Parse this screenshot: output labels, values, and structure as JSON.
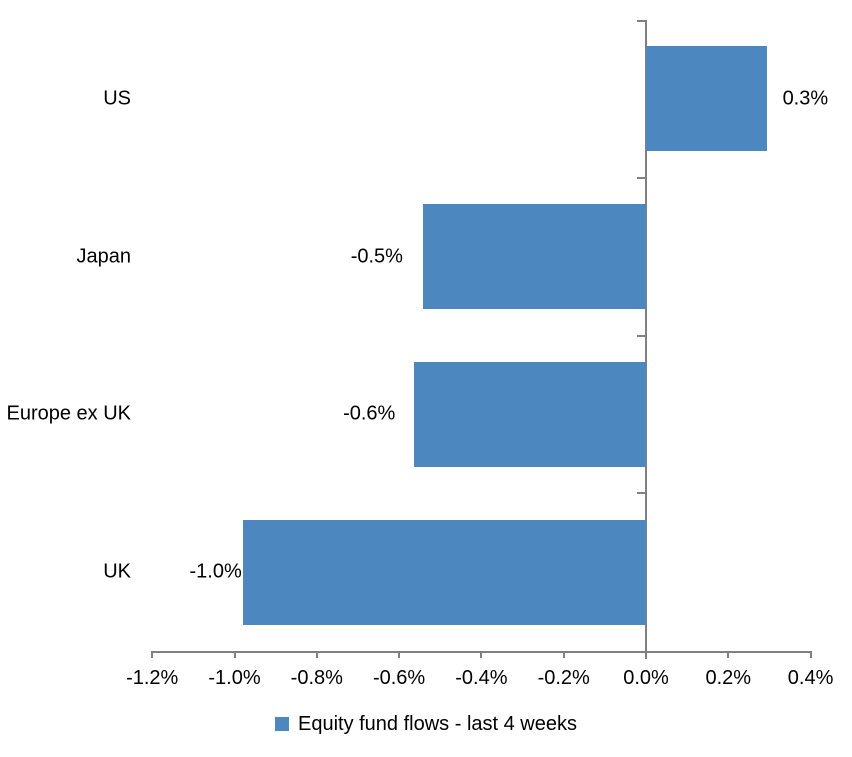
{
  "chart_data": {
    "type": "bar",
    "orientation": "horizontal",
    "title": "",
    "categories": [
      "US",
      "Japan",
      "Europe ex UK",
      "UK"
    ],
    "values": [
      0.3,
      -0.5,
      -0.6,
      -1.0
    ],
    "unit": "%",
    "data_labels": [
      "0.3%",
      "-0.5%",
      "-0.6%",
      "-1.0%"
    ],
    "bar_plot_values": [
      0.293,
      -0.542,
      -0.563,
      -0.98
    ],
    "xlabel": "",
    "ylabel": "",
    "xlim": [
      -1.2,
      0.4
    ],
    "x_tick_step": 0.2,
    "x_tick_labels": [
      "-1.2%",
      "-1.0%",
      "-0.8%",
      "-0.6%",
      "-0.4%",
      "-0.2%",
      "0.0%",
      "0.2%",
      "0.4%"
    ],
    "grid": false,
    "legend": {
      "position": "bottom",
      "marker": "square",
      "entries": [
        "Equity fund flows - last 4 weeks"
      ]
    },
    "colors": {
      "bar": "#4D87BF",
      "axis": "#808080",
      "text": "#000000",
      "background": "#FFFFFF"
    }
  }
}
